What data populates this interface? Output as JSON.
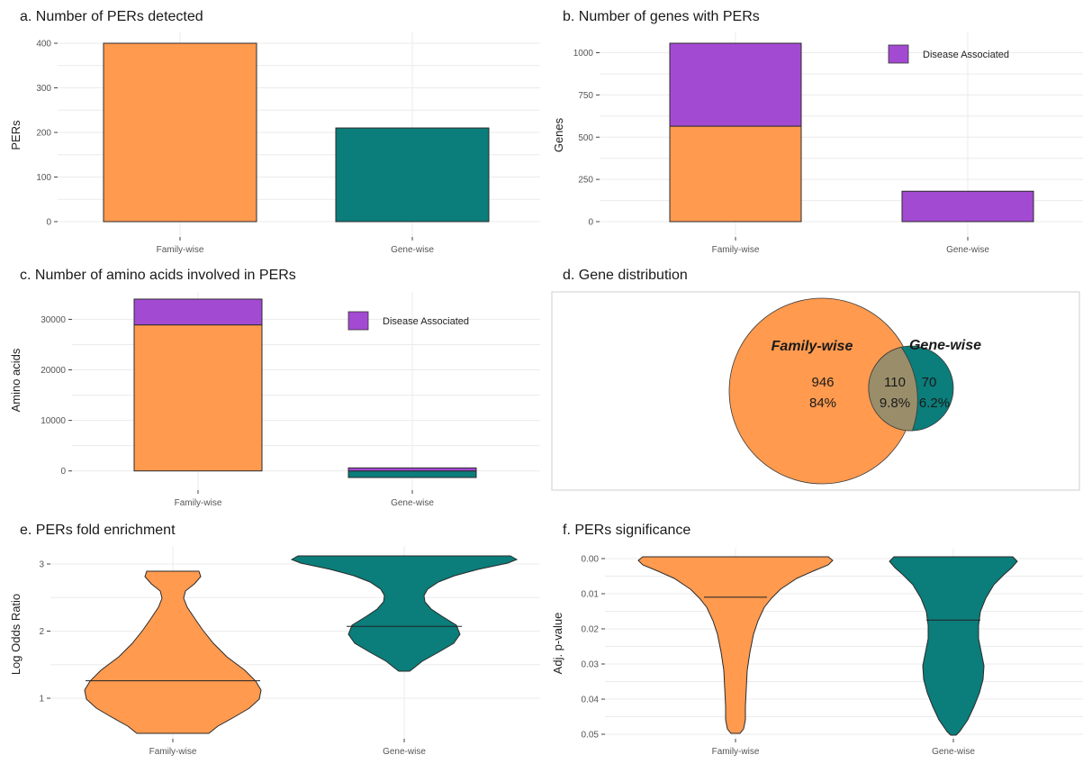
{
  "colors": {
    "family": "#FF9A4F",
    "gene": "#0B7D7A",
    "disease": "#A34AD3",
    "overlap": "#9A8E6A"
  },
  "chart_data": [
    {
      "id": "a",
      "type": "bar",
      "title": "a. Number of PERs detected",
      "ylabel": "PERs",
      "ylim": [
        0,
        400
      ],
      "yticks": [
        "0",
        "100",
        "200",
        "300",
        "400"
      ],
      "categories": [
        "Family-wise",
        "Gene-wise"
      ],
      "series": [
        {
          "values": [
            400,
            210
          ]
        }
      ]
    },
    {
      "id": "b",
      "type": "bar",
      "stacked": true,
      "title": "b. Number of genes with PERs",
      "ylabel": "Genes",
      "ylim": [
        0,
        1056
      ],
      "yticks": [
        "0",
        "250",
        "500",
        "750",
        "1000"
      ],
      "categories": [
        "Family-wise",
        "Gene-wise"
      ],
      "legend": {
        "label": "Disease Associated",
        "placement": "top-right"
      },
      "series": [
        {
          "values": [
            565,
            0
          ]
        },
        {
          "name": "Disease Associated",
          "values": [
            491,
            180
          ]
        }
      ]
    },
    {
      "id": "c",
      "type": "bar",
      "stacked": true,
      "title": "c. Number of amino acids involved in PERs",
      "ylabel": "Amino acids",
      "ylim": [
        0,
        34000
      ],
      "yticks": [
        "0",
        "10000",
        "20000",
        "30000"
      ],
      "categories": [
        "Family-wise",
        "Gene-wise"
      ],
      "legend": {
        "label": "Disease Associated",
        "placement": "top-right"
      },
      "series": [
        {
          "values": [
            28900,
            -1300
          ]
        },
        {
          "name": "Disease Associated",
          "values": [
            5100,
            600
          ]
        }
      ]
    },
    {
      "id": "d",
      "type": "venn",
      "title": "d. Gene distribution",
      "sets": [
        {
          "label": "Family-wise",
          "only_count": "946",
          "only_pct": "84%"
        },
        {
          "label": "Gene-wise",
          "only_count": "70",
          "only_pct": "6.2%"
        }
      ],
      "intersection": {
        "count": "110",
        "pct": "9.8%"
      }
    },
    {
      "id": "e",
      "type": "violin",
      "title": "e. PERs fold enrichment",
      "ylabel": "Log Odds Ratio",
      "yticks": [
        "1",
        "2",
        "3"
      ],
      "categories": [
        "Family-wise",
        "Gene-wise"
      ],
      "medians": [
        1.26,
        2.07
      ]
    },
    {
      "id": "f",
      "type": "violin",
      "title": "f.  PERs significance",
      "ylabel": "Adj. p-value",
      "y_reversed": true,
      "yticks": [
        "0.00",
        "0.01",
        "0.02",
        "0.03",
        "0.04",
        "0.05"
      ],
      "categories": [
        "Family-wise",
        "Gene-wise"
      ],
      "medians": [
        0.011,
        0.0175
      ]
    }
  ]
}
